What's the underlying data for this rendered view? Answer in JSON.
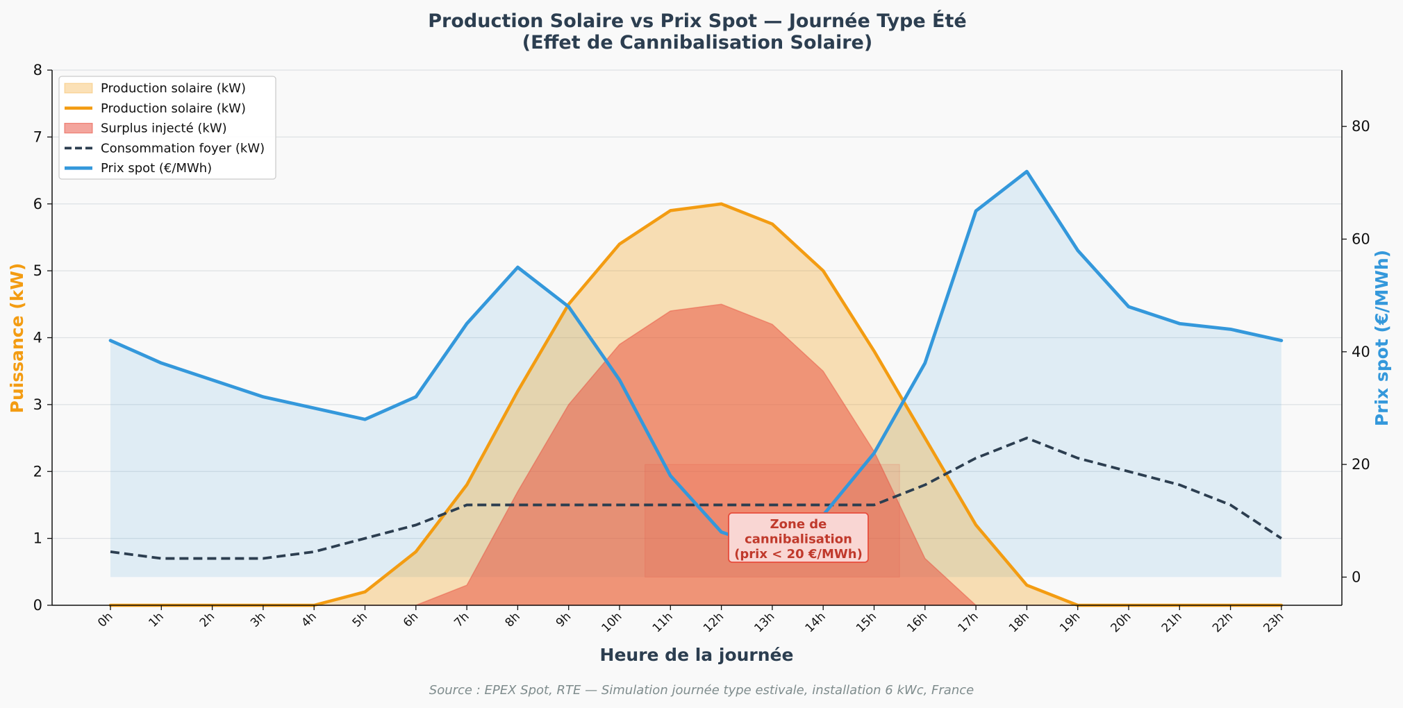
{
  "chart_data": {
    "type": "line",
    "title_line1": "Production Solaire vs Prix Spot — Journée Type Été",
    "title_line2": "(Effet de Cannibalisation Solaire)",
    "xlabel": "Heure de la journée",
    "ylabel_left": "Puissance (kW)",
    "ylabel_right": "Prix spot (€/MWh)",
    "categories": [
      "0h",
      "1h",
      "2h",
      "3h",
      "4h",
      "5h",
      "6h",
      "7h",
      "8h",
      "9h",
      "10h",
      "11h",
      "12h",
      "13h",
      "14h",
      "15h",
      "16h",
      "17h",
      "18h",
      "19h",
      "20h",
      "21h",
      "22h",
      "23h"
    ],
    "ylim_left": [
      0,
      8
    ],
    "yticks_left": [
      "0",
      "1",
      "2",
      "3",
      "4",
      "5",
      "6",
      "7",
      "8"
    ],
    "ylim_right": [
      -5,
      90
    ],
    "yticks_right": [
      "0",
      "20",
      "40",
      "60",
      "80"
    ],
    "grid": true,
    "legend_placement": "top-left",
    "series": [
      {
        "name": "Production solaire (kW)",
        "axis": "left",
        "color": "#f39c12",
        "values": [
          0,
          0,
          0,
          0,
          0,
          0.2,
          0.8,
          1.8,
          3.2,
          4.5,
          5.4,
          5.9,
          6.0,
          5.7,
          5.0,
          3.8,
          2.5,
          1.2,
          0.3,
          0,
          0,
          0,
          0,
          0
        ]
      },
      {
        "name": "Surplus injecté (kW)",
        "axis": "left",
        "color": "#e74c3c",
        "values": [
          0,
          0,
          0,
          0,
          0,
          0,
          0,
          0.3,
          1.7,
          3.0,
          3.9,
          4.4,
          4.5,
          4.2,
          3.5,
          2.3,
          0.7,
          0,
          0,
          0,
          0,
          0,
          0,
          0
        ]
      },
      {
        "name": "Consommation foyer (kW)",
        "axis": "left",
        "color": "#2c3e50",
        "values": [
          0.8,
          0.7,
          0.7,
          0.7,
          0.8,
          1.0,
          1.2,
          1.5,
          1.5,
          1.5,
          1.5,
          1.5,
          1.5,
          1.5,
          1.5,
          1.5,
          1.8,
          2.2,
          2.5,
          2.2,
          2.0,
          1.8,
          1.5,
          1.0
        ]
      },
      {
        "name": "Prix spot (€/MWh)",
        "axis": "right",
        "color": "#3498db",
        "values": [
          42,
          38,
          35,
          32,
          30,
          28,
          32,
          45,
          55,
          48,
          35,
          18,
          8,
          5,
          11,
          22,
          38,
          65,
          72,
          58,
          48,
          45,
          44,
          42
        ]
      }
    ],
    "legend": [
      "Production solaire (kW)",
      "Production solaire (kW)",
      "Surplus injecté (kW)",
      "Consommation foyer (kW)",
      "Prix spot (€/MWh)"
    ],
    "annotation": {
      "lines": [
        "Zone de",
        "cannibalisation",
        "(prix < 20 €/MWh)"
      ],
      "zone_x_range": [
        "10h",
        "15h"
      ],
      "zone_price_range": [
        0,
        20
      ]
    },
    "source": "Source : EPEX Spot, RTE — Simulation journée type estivale, installation 6 kWc, France"
  }
}
